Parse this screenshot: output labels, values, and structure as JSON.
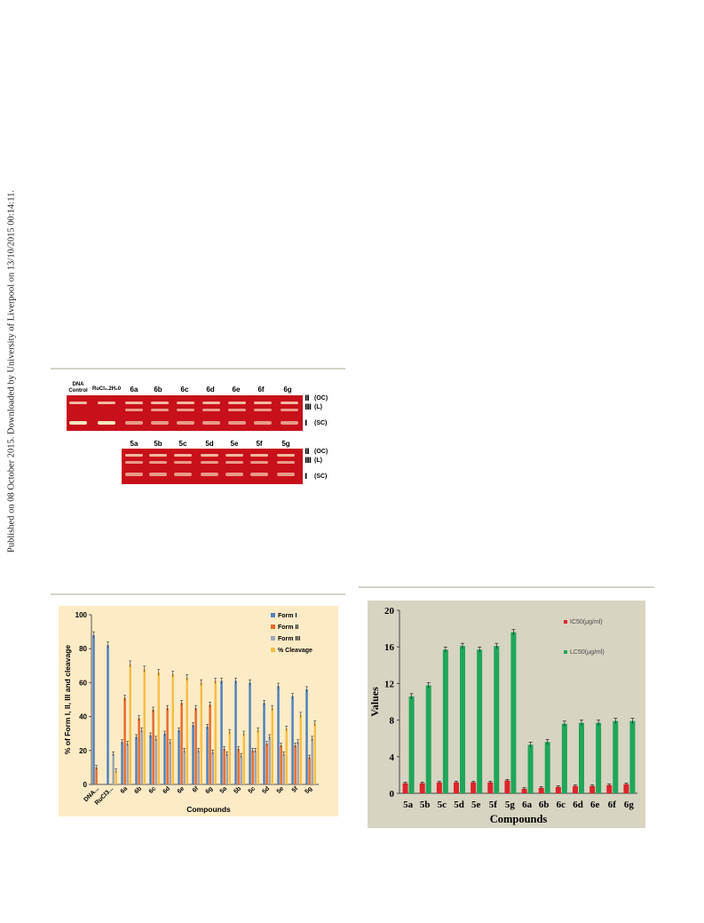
{
  "side_note": "Published on 08 October 2015. Downloaded by University of Liverpool on 13/10/2015 00:14:11.",
  "gel": {
    "row1_lanes": [
      "DNA\nControl",
      "RuCl₃.2H₂0",
      "6a",
      "6b",
      "6c",
      "6d",
      "6e",
      "6f",
      "6g"
    ],
    "row2_lanes": [
      "5a",
      "5b",
      "5c",
      "5d",
      "5e",
      "5f",
      "5g"
    ],
    "form_bars": [
      "II",
      "III",
      "I"
    ],
    "form_labels": [
      "(OC)",
      "(L)",
      "(SC)"
    ]
  },
  "chart_data": [
    {
      "type": "bar",
      "ylabel": "% of Form I, II, III and cleavage",
      "xlabel": "Compounds",
      "ylim": [
        0,
        100
      ],
      "yticks": [
        0,
        20,
        40,
        60,
        80,
        100
      ],
      "categories": [
        "DNA...",
        "RuCl3...",
        "6a",
        "6b",
        "6c",
        "6d",
        "6e",
        "6f",
        "6g",
        "5a",
        "5b",
        "5c",
        "5d",
        "5e",
        "5f",
        "5g"
      ],
      "series": [
        {
          "name": "Form I",
          "color": "#4f81bd",
          "values": [
            88,
            82,
            25,
            28,
            29,
            30,
            32,
            35,
            34,
            61,
            61,
            60,
            48,
            58,
            52,
            56
          ]
        },
        {
          "name": "Form II",
          "color": "#e66a2c",
          "values": [
            10,
            0,
            51,
            39,
            44,
            45,
            48,
            45,
            47,
            21,
            21,
            20,
            24,
            23,
            23,
            16
          ]
        },
        {
          "name": "Form III",
          "color": "#9da6b6",
          "values": [
            0,
            18,
            24,
            32,
            27,
            25,
            20,
            20,
            19,
            18,
            17,
            20,
            28,
            18,
            25,
            27
          ]
        },
        {
          "name": "% Cleavage",
          "color": "#f7be46",
          "values": [
            0,
            8,
            71,
            68,
            66,
            65,
            63,
            60,
            61,
            31,
            30,
            32,
            45,
            33,
            41,
            36
          ]
        }
      ],
      "grid": false,
      "legend_position": "top-right",
      "background": "#fdebc6"
    },
    {
      "type": "bar",
      "ylabel": "Values",
      "xlabel": "Compounds",
      "ylim": [
        0,
        20
      ],
      "yticks": [
        0,
        4,
        8,
        12,
        16,
        20
      ],
      "categories": [
        "5a",
        "5b",
        "5c",
        "5d",
        "5e",
        "5f",
        "5g",
        "6a",
        "6b",
        "6c",
        "6d",
        "6e",
        "6f",
        "6g"
      ],
      "series": [
        {
          "name": "IC50(μg/ml)",
          "color": "#e0242b",
          "values": [
            1.1,
            1.1,
            1.2,
            1.2,
            1.2,
            1.2,
            1.4,
            0.5,
            0.6,
            0.7,
            0.8,
            0.8,
            0.9,
            1.0
          ]
        },
        {
          "name": "LC50(μg/ml)",
          "color": "#1fa65a",
          "values": [
            10.6,
            11.8,
            15.7,
            16.1,
            15.7,
            16.1,
            17.6,
            5.3,
            5.6,
            7.6,
            7.7,
            7.7,
            7.9,
            7.9
          ]
        }
      ],
      "grid": false,
      "legend_position": "right",
      "background": "#d7d4c1"
    }
  ]
}
